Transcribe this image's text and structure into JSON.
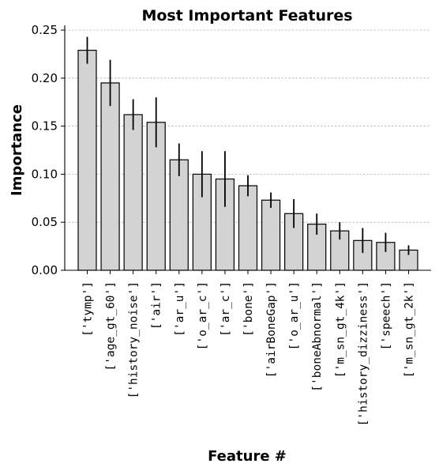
{
  "chart_data": {
    "type": "bar",
    "title": "Most Important Features",
    "xlabel": "Feature #",
    "ylabel": "Importance",
    "ylim": [
      0,
      0.255
    ],
    "yticks": [
      0.0,
      0.05,
      0.1,
      0.15,
      0.2,
      0.25
    ],
    "ytick_labels": [
      "0.00",
      "0.05",
      "0.10",
      "0.15",
      "0.20",
      "0.25"
    ],
    "grid": "horizontal dashed",
    "bar_color": "#d3d3d3",
    "edge_color": "#000000",
    "categories": [
      "['tymp']",
      "['age_gt_60']",
      "['history_noise']",
      "['air']",
      "['ar_u']",
      "['o_ar_c']",
      "['ar_c']",
      "['bone']",
      "['airBoneGap']",
      "['o_ar_u']",
      "['boneAbnormal']",
      "['m_sn_gt_4k']",
      "['history_dizziness']",
      "['speech']",
      "['m_sn_gt_2k']"
    ],
    "values": [
      0.229,
      0.195,
      0.162,
      0.154,
      0.115,
      0.1,
      0.095,
      0.088,
      0.073,
      0.059,
      0.048,
      0.041,
      0.031,
      0.029,
      0.021
    ],
    "errors": [
      0.014,
      0.024,
      0.016,
      0.026,
      0.017,
      0.024,
      0.029,
      0.011,
      0.008,
      0.015,
      0.011,
      0.009,
      0.013,
      0.01,
      0.005
    ]
  }
}
